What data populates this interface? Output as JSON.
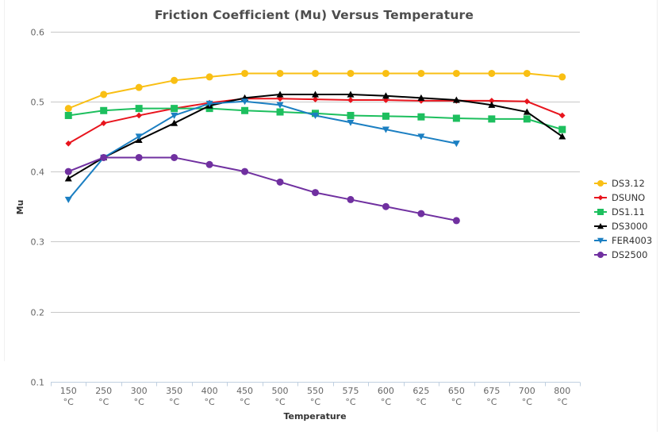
{
  "chart_data": {
    "type": "line",
    "title": "Friction Coefficient (Mu) Versus Temperature",
    "xlabel": "Temperature",
    "ylabel": "Mu",
    "ylim": [
      0.1,
      0.6
    ],
    "yticks": [
      "0.1",
      "0.2",
      "0.3",
      "0.4",
      "0.5",
      "0.6"
    ],
    "grid": true,
    "legend_position": "right",
    "categories": [
      "150",
      "250",
      "300",
      "350",
      "400",
      "450",
      "500",
      "550",
      "575",
      "600",
      "625",
      "650",
      "675",
      "700",
      "800"
    ],
    "category_unit": "°C",
    "series": [
      {
        "name": "DS3.12",
        "color": "#f9bf14",
        "marker": "circle",
        "values": [
          0.49,
          0.51,
          0.52,
          0.53,
          0.535,
          0.54,
          0.54,
          0.54,
          0.54,
          0.54,
          0.54,
          0.54,
          0.54,
          0.54,
          0.535
        ]
      },
      {
        "name": "DSUNO",
        "color": "#e8141d",
        "marker": "diamond",
        "values": [
          0.44,
          0.469,
          0.48,
          0.49,
          0.498,
          0.504,
          0.504,
          0.503,
          0.502,
          0.502,
          0.501,
          0.501,
          0.501,
          0.5,
          0.48
        ]
      },
      {
        "name": "DS1.11",
        "color": "#1dbf5e",
        "marker": "square",
        "values": [
          0.48,
          0.487,
          0.49,
          0.49,
          0.49,
          0.487,
          0.485,
          0.483,
          0.48,
          0.479,
          0.478,
          0.476,
          0.475,
          0.475,
          0.46
        ]
      },
      {
        "name": "DS3000",
        "color": "#000000",
        "marker": "triangle",
        "values": [
          0.39,
          0.42,
          0.445,
          0.469,
          0.494,
          0.505,
          0.51,
          0.51,
          0.51,
          0.508,
          0.505,
          0.502,
          0.495,
          0.485,
          0.45
        ]
      },
      {
        "name": "FER4003",
        "color": "#1b7fc2",
        "marker": "triangle-down",
        "values": [
          0.36,
          0.42,
          0.45,
          0.48,
          0.497,
          0.5,
          0.495,
          0.48,
          0.47,
          0.46,
          0.45,
          0.44,
          null,
          null,
          null
        ]
      },
      {
        "name": "DS2500",
        "color": "#7030a0",
        "marker": "circle",
        "values": [
          0.4,
          0.42,
          0.42,
          0.42,
          0.41,
          0.4,
          0.385,
          0.37,
          0.36,
          0.35,
          0.34,
          0.33,
          null,
          null,
          null
        ]
      }
    ]
  }
}
